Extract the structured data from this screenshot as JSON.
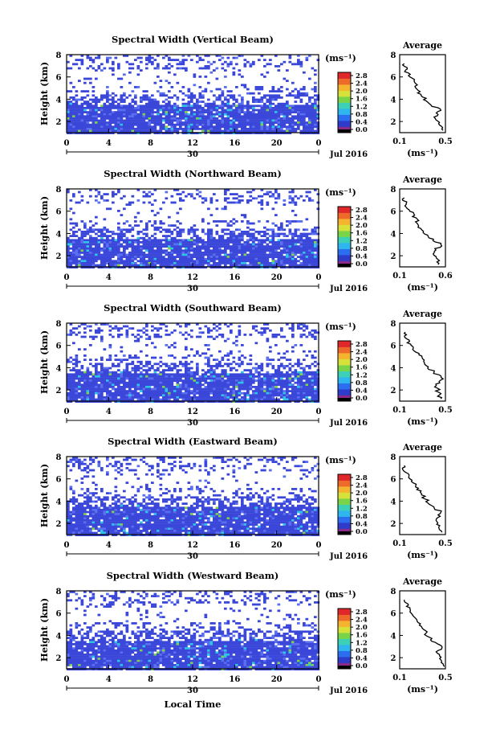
{
  "chart_data": [
    {
      "type": "heatmap",
      "title": "Spectral Width (Vertical Beam)",
      "ylabel": "Height (km)",
      "xlim": [
        0,
        24
      ],
      "ylim": [
        1,
        8
      ],
      "xticks": [
        "0",
        "4",
        "8",
        "12",
        "16",
        "20",
        "0"
      ],
      "yticks": [
        "2",
        "4",
        "6",
        "8"
      ],
      "day_label": "30",
      "month_label": "Jul 2016",
      "colorbar": {
        "unit": "(ms⁻¹)",
        "ticks": [
          "0.0",
          "0.4",
          "0.8",
          "1.2",
          "1.6",
          "2.0",
          "2.4",
          "2.8"
        ]
      },
      "average_profile": {
        "title": "Average",
        "xlabel": "(ms⁻¹)",
        "xticks": [
          "0.1",
          "0.5"
        ],
        "yticks": [
          "2",
          "4",
          "6",
          "8"
        ],
        "xlim": [
          0.1,
          0.5
        ],
        "ylim": [
          1,
          8
        ],
        "heights": [
          1.2,
          1.8,
          2.4,
          3.0,
          3.6,
          4.2,
          4.8,
          5.4,
          6.0,
          6.6,
          7.2
        ],
        "values": [
          0.48,
          0.44,
          0.4,
          0.46,
          0.36,
          0.3,
          0.26,
          0.24,
          0.19,
          0.15,
          0.14
        ]
      }
    },
    {
      "type": "heatmap",
      "title": "Spectral Width (Northward Beam)",
      "ylabel": "Height (km)",
      "xlim": [
        0,
        24
      ],
      "ylim": [
        1,
        8
      ],
      "xticks": [
        "0",
        "4",
        "8",
        "12",
        "16",
        "20",
        "0"
      ],
      "yticks": [
        "2",
        "4",
        "6",
        "8"
      ],
      "day_label": "30",
      "month_label": "Jul 2016",
      "colorbar": {
        "unit": "(ms⁻¹)",
        "ticks": [
          "0.0",
          "0.4",
          "0.8",
          "1.2",
          "1.6",
          "2.0",
          "2.4",
          "2.8"
        ]
      },
      "average_profile": {
        "title": "Average",
        "xlabel": "(ms⁻¹)",
        "xticks": [
          "0.1",
          "0.6"
        ],
        "yticks": [
          "2",
          "4",
          "6",
          "8"
        ],
        "xlim": [
          0.1,
          0.6
        ],
        "ylim": [
          1,
          8
        ],
        "heights": [
          1.2,
          1.8,
          2.4,
          3.0,
          3.6,
          4.2,
          4.8,
          5.4,
          6.0,
          6.6,
          7.2
        ],
        "values": [
          0.52,
          0.5,
          0.48,
          0.55,
          0.42,
          0.36,
          0.3,
          0.28,
          0.21,
          0.17,
          0.15
        ]
      }
    },
    {
      "type": "heatmap",
      "title": "Spectral Width (Southward Beam)",
      "ylabel": "Height (km)",
      "xlim": [
        0,
        24
      ],
      "ylim": [
        1,
        8
      ],
      "xticks": [
        "0",
        "4",
        "8",
        "12",
        "16",
        "20",
        "0"
      ],
      "yticks": [
        "2",
        "4",
        "6",
        "8"
      ],
      "day_label": "30",
      "month_label": "Jul 2016",
      "colorbar": {
        "unit": "(ms⁻¹)",
        "ticks": [
          "0.0",
          "0.4",
          "0.8",
          "1.2",
          "1.6",
          "2.0",
          "2.4",
          "2.8"
        ]
      },
      "average_profile": {
        "title": "Average",
        "xlabel": "(ms⁻¹)",
        "xticks": [
          "0.1",
          "0.5"
        ],
        "yticks": [
          "2",
          "4",
          "6",
          "8"
        ],
        "xlim": [
          0.1,
          0.5
        ],
        "ylim": [
          1,
          8
        ],
        "heights": [
          1.2,
          1.8,
          2.4,
          3.0,
          3.6,
          4.2,
          4.8,
          5.4,
          6.0,
          6.6,
          7.2
        ],
        "values": [
          0.46,
          0.44,
          0.42,
          0.48,
          0.4,
          0.33,
          0.3,
          0.24,
          0.2,
          0.16,
          0.15
        ]
      }
    },
    {
      "type": "heatmap",
      "title": "Spectral Width (Eastward Beam)",
      "ylabel": "Height (km)",
      "xlim": [
        0,
        24
      ],
      "ylim": [
        1,
        8
      ],
      "xticks": [
        "0",
        "4",
        "8",
        "12",
        "16",
        "20",
        "0"
      ],
      "yticks": [
        "2",
        "4",
        "6",
        "8"
      ],
      "day_label": "30",
      "month_label": "Jul 2016",
      "colorbar": {
        "unit": "(ms⁻¹)",
        "ticks": [
          "0.0",
          "0.4",
          "0.8",
          "1.2",
          "1.6",
          "2.0",
          "2.4",
          "2.8"
        ]
      },
      "average_profile": {
        "title": "Average",
        "xlabel": "(ms⁻¹)",
        "xticks": [
          "0.1",
          "0.5"
        ],
        "yticks": [
          "2",
          "4",
          "6",
          "8"
        ],
        "xlim": [
          0.1,
          0.5
        ],
        "ylim": [
          1,
          8
        ],
        "heights": [
          1.2,
          1.8,
          2.4,
          3.0,
          3.6,
          4.2,
          4.8,
          5.4,
          6.0,
          6.6,
          7.2
        ],
        "values": [
          0.47,
          0.45,
          0.42,
          0.46,
          0.38,
          0.32,
          0.28,
          0.24,
          0.19,
          0.15,
          0.14
        ]
      }
    },
    {
      "type": "heatmap",
      "title": "Spectral Width (Westward Beam)",
      "ylabel": "Height (km)",
      "xlim": [
        0,
        24
      ],
      "ylim": [
        1,
        8
      ],
      "xticks": [
        "0",
        "4",
        "8",
        "12",
        "16",
        "20",
        "0"
      ],
      "yticks": [
        "2",
        "4",
        "6",
        "8"
      ],
      "day_label": "30",
      "month_label": "Jul 2016",
      "colorbar": {
        "unit": "(ms⁻¹)",
        "ticks": [
          "0.0",
          "0.4",
          "0.8",
          "1.2",
          "1.6",
          "2.0",
          "2.4",
          "2.8"
        ]
      },
      "average_profile": {
        "title": "Average",
        "xlabel": "(ms⁻¹)",
        "xticks": [
          "0.1",
          "0.5"
        ],
        "yticks": [
          "2",
          "4",
          "6",
          "8"
        ],
        "xlim": [
          0.1,
          0.5
        ],
        "ylim": [
          1,
          8
        ],
        "heights": [
          1.2,
          1.8,
          2.4,
          3.0,
          3.6,
          4.2,
          4.8,
          5.4,
          6.0,
          6.6,
          7.2
        ],
        "values": [
          0.49,
          0.46,
          0.43,
          0.47,
          0.37,
          0.33,
          0.29,
          0.25,
          0.2,
          0.16,
          0.14
        ]
      }
    }
  ],
  "xlabel": "Local Time",
  "colors": {
    "background": "#ffffff",
    "dominant": "#3a47d9",
    "light": "#5a6ef0",
    "cyan": "#2ec4e6",
    "green": "#7cd24a",
    "orange": "#f08a2a",
    "red": "#e8322a"
  }
}
